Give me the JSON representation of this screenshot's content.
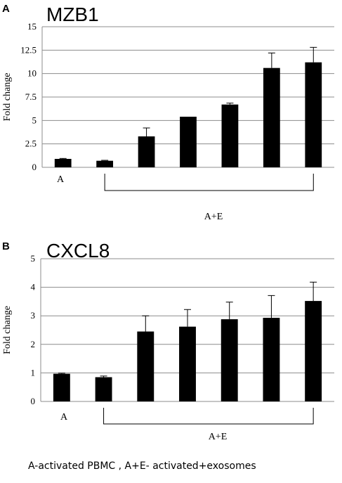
{
  "caption": "A-activated  PBMC , A+E- activated+exosomes",
  "chart_data": [
    {
      "type": "bar",
      "panel": "A",
      "title": "MZB1",
      "ylabel": "Fold change",
      "ylim": [
        0,
        15
      ],
      "yticks": [
        "0",
        "2.5",
        "5",
        "7.5",
        "10",
        "12.5",
        "15"
      ],
      "grid": true,
      "series": [
        {
          "values": [
            0.9,
            0.7,
            3.3,
            5.4,
            6.7,
            10.6,
            11.2
          ],
          "errors": [
            0.05,
            0.05,
            0.9,
            0.0,
            0.15,
            1.6,
            1.6
          ]
        }
      ],
      "group_labels": [
        {
          "label": "A",
          "from_bar": 0,
          "to_bar": 0
        },
        {
          "label": "A+E",
          "from_bar": 1,
          "to_bar": 6
        }
      ],
      "bar_color": "#000000"
    },
    {
      "type": "bar",
      "panel": "B",
      "title": "CXCL8",
      "ylabel": "Fold change",
      "ylim": [
        0,
        5
      ],
      "yticks": [
        "0",
        "1",
        "2",
        "3",
        "4",
        "5"
      ],
      "grid": true,
      "series": [
        {
          "values": [
            0.97,
            0.85,
            2.45,
            2.62,
            2.88,
            2.93,
            3.52
          ],
          "errors": [
            0.02,
            0.04,
            0.55,
            0.6,
            0.6,
            0.78,
            0.66
          ]
        }
      ],
      "group_labels": [
        {
          "label": "A",
          "from_bar": 0,
          "to_bar": 0
        },
        {
          "label": "A+E",
          "from_bar": 1,
          "to_bar": 6
        }
      ],
      "bar_color": "#000000"
    }
  ]
}
